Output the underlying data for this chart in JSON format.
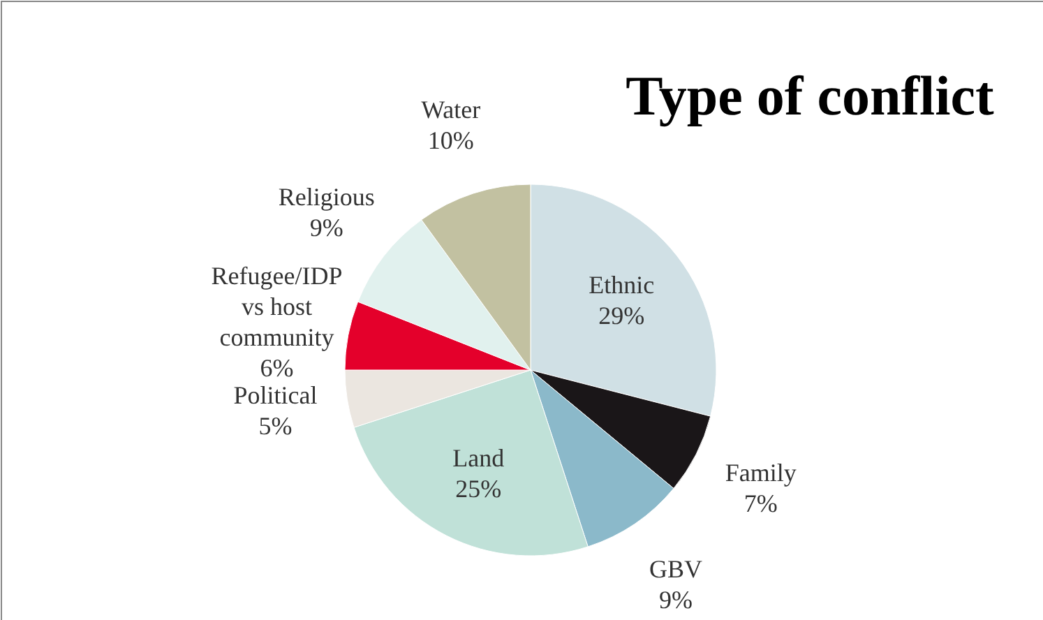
{
  "chart_data": {
    "type": "pie",
    "title": "Type of conflict",
    "categories": [
      "Ethnic",
      "Family",
      "GBV",
      "Land",
      "Political",
      "Refugee/IDP vs host community",
      "Religious",
      "Water"
    ],
    "values": [
      29,
      7,
      9,
      25,
      5,
      6,
      9,
      10
    ],
    "colors": [
      "#d0e0e5",
      "#1a1618",
      "#8bb9ca",
      "#c0e1d8",
      "#ebe6e0",
      "#e4002b",
      "#e1f1ee",
      "#c2c1a1"
    ],
    "value_labels": [
      "29%",
      "7%",
      "9%",
      "25%",
      "5%",
      "6%",
      "9%",
      "10%"
    ]
  }
}
